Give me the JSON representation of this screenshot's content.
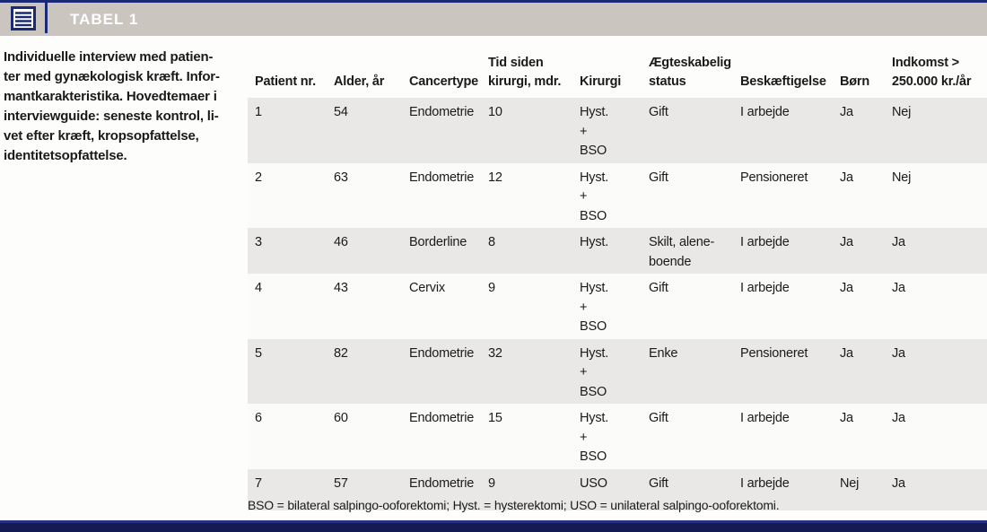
{
  "header": {
    "title": "TABEL 1",
    "icon": "table-list-icon"
  },
  "sidebar": {
    "caption": "Individuelle interview med patien-\nter med gynækologisk kræft. Infor-\nmantkarakteristika. Hovedtemaer i\ninterviewguide: seneste kontrol, li-\nvet efter kræft, kropsopfattelse,\nidentitetsopfattelse."
  },
  "table": {
    "columns": [
      "Patient nr.",
      "Alder, år",
      "Cancertype",
      "Tid siden\nkirurgi, mdr.",
      "Kirurgi",
      "Ægteskabelig\nstatus",
      "Beskæftigelse",
      "Børn",
      "Indkomst >\n250.000 kr./år"
    ],
    "rows": [
      [
        "1",
        "54",
        "Endometrie",
        "10",
        "Hyst.\n+\nBSO",
        "Gift",
        "I arbejde",
        "Ja",
        "Nej"
      ],
      [
        "2",
        "63",
        "Endometrie",
        "12",
        "Hyst.\n+\nBSO",
        "Gift",
        "Pensioneret",
        "Ja",
        "Nej"
      ],
      [
        "3",
        "46",
        "Borderline",
        "8",
        "Hyst.",
        "Skilt, alene-\nboende",
        "I arbejde",
        "Ja",
        "Ja"
      ],
      [
        "4",
        "43",
        "Cervix",
        "9",
        "Hyst.\n+\nBSO",
        "Gift",
        "I arbejde",
        "Ja",
        "Ja"
      ],
      [
        "5",
        "82",
        "Endometrie",
        "32",
        "Hyst.\n+\nBSO",
        "Enke",
        "Pensioneret",
        "Ja",
        "Ja"
      ],
      [
        "6",
        "60",
        "Endometrie",
        "15",
        "Hyst.\n+\nBSO",
        "Gift",
        "I arbejde",
        "Ja",
        "Ja"
      ],
      [
        "7",
        "57",
        "Endometrie",
        "9",
        "USO",
        "Gift",
        "I arbejde",
        "Nej",
        "Ja"
      ]
    ]
  },
  "footnote": "BSO = bilateral salpingo-ooforektomi; Hyst. = hysterektomi; USO = unilateral salpingo-ooforektomi.",
  "colors": {
    "navy": "#1b2a75",
    "navy_dark": "#131b52",
    "band_gray": "#cac5bf",
    "row_gray": "#e9e8e6",
    "row_white": "#fbfbfa",
    "text": "#1a1a1a",
    "title_text": "#ffffff"
  }
}
